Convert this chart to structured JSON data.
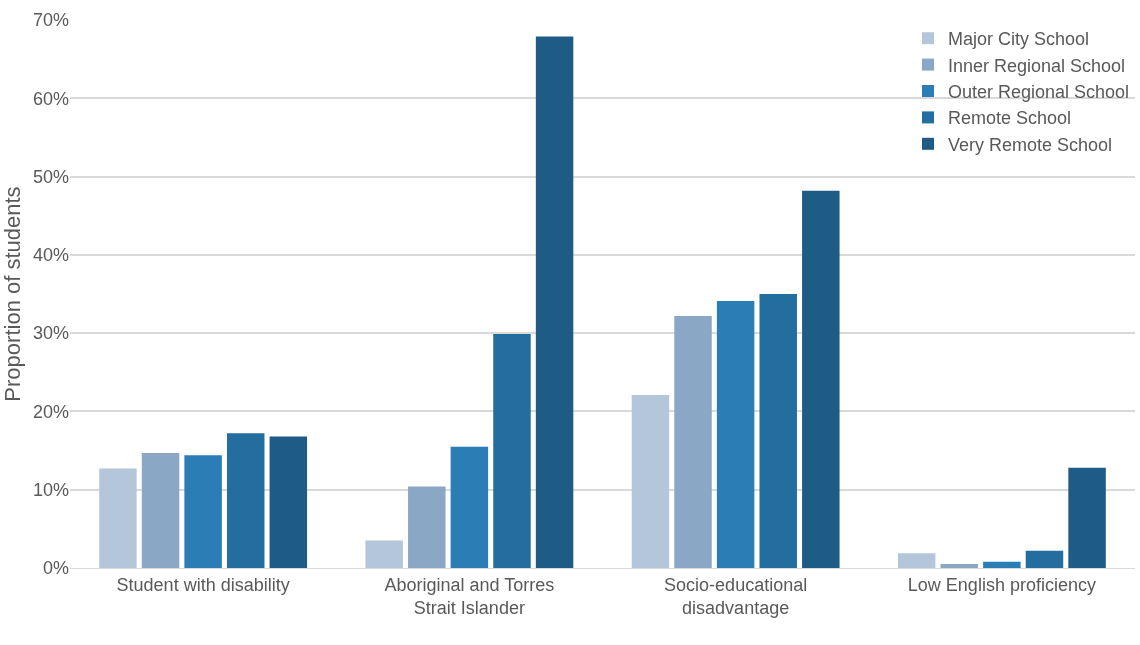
{
  "chart_data": {
    "type": "bar",
    "ylabel": "Proportion of students",
    "categories": [
      "Student with disability",
      "Aboriginal and Torres Strait Islander",
      "Socio-educational disadvantage",
      "Low English proficiency"
    ],
    "series": [
      {
        "name": "Major City School",
        "color": "#b4c6da",
        "values": [
          12.7,
          3.5,
          22.1,
          1.9
        ]
      },
      {
        "name": "Inner Regional School",
        "color": "#8aa8c6",
        "values": [
          14.7,
          10.4,
          32.2,
          0.5
        ]
      },
      {
        "name": "Outer Regional School",
        "color": "#2a7db5",
        "values": [
          14.4,
          15.5,
          34.1,
          0.8
        ]
      },
      {
        "name": "Remote School",
        "color": "#236e9e",
        "values": [
          17.2,
          29.9,
          35.0,
          2.2
        ]
      },
      {
        "name": "Very Remote School",
        "color": "#1f5c85",
        "values": [
          16.8,
          67.9,
          48.2,
          12.8
        ]
      }
    ],
    "ylim": [
      0,
      70
    ],
    "yticks": [
      {
        "value": 0,
        "label": "0%"
      },
      {
        "value": 10,
        "label": "10%"
      },
      {
        "value": 20,
        "label": "20%"
      },
      {
        "value": 30,
        "label": "30%"
      },
      {
        "value": 40,
        "label": "40%"
      },
      {
        "value": 50,
        "label": "50%"
      },
      {
        "value": 60,
        "label": "60%"
      },
      {
        "value": 70,
        "label": "70%"
      }
    ],
    "grid": "y",
    "legend": "top right"
  }
}
